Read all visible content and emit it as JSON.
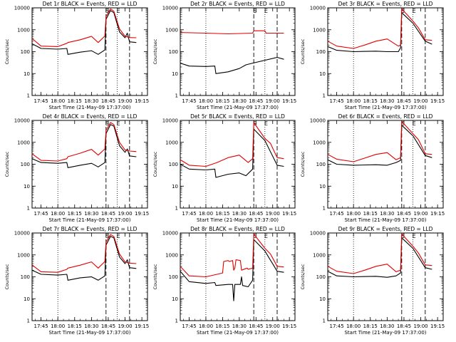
{
  "window": {
    "background": "#ffffff",
    "events_color": "#000000",
    "lld_color": "#e00000"
  },
  "chart_data": [
    {
      "type": "line",
      "title": "Det 1r  BLACK = Events, RED = LLD",
      "xlabel": "Start Time (21-May-09 17:37:00)",
      "ylabel": "Counts/sec",
      "y_scale": "log",
      "ylim": [
        1,
        10000
      ],
      "x_ticks": [
        "17:45",
        "18:00",
        "18:15",
        "18:30",
        "18:45",
        "19:00",
        "19:15"
      ],
      "y_ticks": [
        "1",
        "10",
        "100",
        "1000",
        "10000"
      ],
      "saa_markers": [
        "S",
        "E"
      ],
      "series": [
        {
          "name": "Events",
          "x": [
            "17:37",
            "17:45",
            "18:00",
            "18:08",
            "18:09",
            "18:20",
            "18:30",
            "18:36",
            "18:42",
            "18:43",
            "18:47",
            "18:50",
            "18:55",
            "19:00",
            "19:02",
            "19:04",
            "19:10"
          ],
          "values": [
            230,
            140,
            130,
            140,
            75,
            95,
            110,
            75,
            120,
            3000,
            7500,
            6000,
            800,
            430,
            700,
            280,
            260
          ]
        },
        {
          "name": "LLD",
          "x": [
            "17:37",
            "17:45",
            "18:00",
            "18:08",
            "18:09",
            "18:20",
            "18:30",
            "18:36",
            "18:42",
            "18:43",
            "18:47",
            "18:50",
            "18:55",
            "19:00",
            "19:04",
            "19:10"
          ],
          "values": [
            400,
            180,
            170,
            240,
            260,
            350,
            500,
            260,
            520,
            4000,
            9000,
            7000,
            1100,
            500,
            440,
            430
          ]
        }
      ]
    },
    {
      "type": "line",
      "title": "Det 2r  BLACK = Events, RED = LLD",
      "xlabel": "Start Time (21-May-09 17:37:00)",
      "ylabel": "Counts/sec",
      "y_scale": "log",
      "ylim": [
        1,
        10000
      ],
      "x_ticks": [
        "17:45",
        "18:00",
        "18:15",
        "18:30",
        "18:45",
        "19:00",
        "19:15"
      ],
      "y_ticks": [
        "1",
        "10",
        "100",
        "1000",
        "10000"
      ],
      "saa_markers": [
        "S",
        "E"
      ],
      "series": [
        {
          "name": "Events",
          "x": [
            "17:37",
            "17:45",
            "18:00",
            "18:08",
            "18:09",
            "18:20",
            "18:30",
            "18:36",
            "18:42",
            "19:04",
            "19:10"
          ],
          "values": [
            30,
            22,
            21,
            22,
            10,
            12,
            17,
            25,
            30,
            55,
            45
          ]
        },
        {
          "name": "LLD",
          "x": [
            "17:37",
            "18:00",
            "18:20",
            "18:42",
            "18:43",
            "18:53",
            "18:54",
            "19:10"
          ],
          "values": [
            750,
            700,
            650,
            700,
            900,
            900,
            700,
            700
          ]
        }
      ]
    },
    {
      "type": "line",
      "title": "Det 3r  BLACK = Events, RED = LLD",
      "xlabel": "Start Time (21-May-09 17:37:00)",
      "ylabel": "Counts/sec",
      "y_scale": "log",
      "ylim": [
        1,
        10000
      ],
      "x_ticks": [
        "17:45",
        "18:00",
        "18:15",
        "18:30",
        "18:45",
        "19:00",
        "19:15"
      ],
      "y_ticks": [
        "1",
        "10",
        "100",
        "1000",
        "10000"
      ],
      "saa_markers": [
        "S",
        "E"
      ],
      "series": [
        {
          "name": "Events",
          "x": [
            "17:37",
            "17:45",
            "18:00",
            "18:20",
            "18:30",
            "18:40",
            "18:42",
            "18:43",
            "18:53",
            "19:04",
            "19:10"
          ],
          "values": [
            170,
            115,
            100,
            105,
            100,
            100,
            150,
            6000,
            2000,
            300,
            220
          ]
        },
        {
          "name": "LLD",
          "x": [
            "17:37",
            "17:45",
            "18:00",
            "18:10",
            "18:20",
            "18:30",
            "18:40",
            "18:42",
            "18:43",
            "18:53",
            "18:58",
            "19:04",
            "19:10"
          ],
          "values": [
            300,
            180,
            140,
            200,
            300,
            380,
            180,
            200,
            9000,
            2500,
            1200,
            350,
            330
          ]
        }
      ]
    },
    {
      "type": "line",
      "title": "Det 4r  BLACK = Events, RED = LLD",
      "xlabel": "Start Time (21-May-09 17:37:00)",
      "ylabel": "Counts/sec",
      "y_scale": "log",
      "ylim": [
        1,
        10000
      ],
      "x_ticks": [
        "17:45",
        "18:00",
        "18:15",
        "18:30",
        "18:45",
        "19:00",
        "19:15"
      ],
      "y_ticks": [
        "1",
        "10",
        "100",
        "1000",
        "10000"
      ],
      "saa_markers": [
        "S",
        "E"
      ],
      "series": [
        {
          "name": "Events",
          "x": [
            "17:37",
            "17:45",
            "18:00",
            "18:08",
            "18:09",
            "18:20",
            "18:30",
            "18:36",
            "18:42",
            "18:43",
            "18:47",
            "18:50",
            "18:55",
            "19:00",
            "19:02",
            "19:04",
            "19:10"
          ],
          "values": [
            180,
            120,
            110,
            120,
            70,
            90,
            110,
            75,
            120,
            2500,
            6500,
            5500,
            700,
            350,
            500,
            240,
            220
          ]
        },
        {
          "name": "LLD",
          "x": [
            "17:37",
            "17:45",
            "18:00",
            "18:08",
            "18:09",
            "18:20",
            "18:30",
            "18:36",
            "18:42",
            "18:43",
            "18:47",
            "18:50",
            "18:55",
            "19:00",
            "19:04",
            "19:10"
          ],
          "values": [
            300,
            150,
            140,
            180,
            220,
            320,
            480,
            260,
            500,
            3500,
            8000,
            6500,
            1000,
            450,
            400,
            380
          ]
        }
      ]
    },
    {
      "type": "line",
      "title": "Det 5r  BLACK = Events, RED = LLD",
      "xlabel": "Start Time (21-May-09 17:37:00)",
      "ylabel": "Counts/sec",
      "y_scale": "log",
      "ylim": [
        1,
        10000
      ],
      "x_ticks": [
        "17:45",
        "18:00",
        "18:15",
        "18:30",
        "18:45",
        "19:00",
        "19:15"
      ],
      "y_ticks": [
        "1",
        "10",
        "100",
        "1000",
        "10000"
      ],
      "saa_markers": [
        "S",
        "E"
      ],
      "series": [
        {
          "name": "Events",
          "x": [
            "17:37",
            "17:45",
            "18:00",
            "18:08",
            "18:09",
            "18:20",
            "18:30",
            "18:36",
            "18:42",
            "18:43",
            "18:53",
            "19:04",
            "19:10"
          ],
          "values": [
            100,
            60,
            55,
            60,
            25,
            35,
            40,
            30,
            60,
            4000,
            1200,
            90,
            80
          ]
        },
        {
          "name": "LLD",
          "x": [
            "17:37",
            "17:45",
            "18:00",
            "18:10",
            "18:20",
            "18:30",
            "18:38",
            "18:42",
            "18:43",
            "18:53",
            "18:58",
            "19:04",
            "19:10"
          ],
          "values": [
            160,
            90,
            80,
            120,
            200,
            260,
            120,
            180,
            8000,
            1500,
            900,
            200,
            180
          ]
        }
      ]
    },
    {
      "type": "line",
      "title": "Det 6r  BLACK = Events, RED = LLD",
      "xlabel": "Start Time (21-May-09 17:37:00)",
      "ylabel": "Counts/sec",
      "y_scale": "log",
      "ylim": [
        1,
        10000
      ],
      "x_ticks": [
        "17:45",
        "18:00",
        "18:15",
        "18:30",
        "18:45",
        "19:00",
        "19:15"
      ],
      "y_ticks": [
        "1",
        "10",
        "100",
        "1000",
        "10000"
      ],
      "saa_markers": [
        "S",
        "E"
      ],
      "series": [
        {
          "name": "Events",
          "x": [
            "17:37",
            "17:45",
            "18:00",
            "18:20",
            "18:30",
            "18:38",
            "18:42",
            "18:43",
            "18:53",
            "19:04",
            "19:10"
          ],
          "values": [
            160,
            100,
            90,
            95,
            90,
            120,
            150,
            6000,
            2000,
            250,
            200
          ]
        },
        {
          "name": "LLD",
          "x": [
            "17:37",
            "17:45",
            "18:00",
            "18:10",
            "18:20",
            "18:30",
            "18:38",
            "18:42",
            "18:43",
            "18:53",
            "18:58",
            "19:04",
            "19:10"
          ],
          "values": [
            280,
            170,
            130,
            190,
            280,
            340,
            160,
            200,
            9000,
            2500,
            1300,
            300,
            280
          ]
        }
      ]
    },
    {
      "type": "line",
      "title": "Det 7r  BLACK = Events, RED = LLD",
      "xlabel": "Start Time (21-May-09 17:37:00)",
      "ylabel": "Counts/sec",
      "y_scale": "log",
      "ylim": [
        1,
        10000
      ],
      "x_ticks": [
        "17:45",
        "18:00",
        "18:15",
        "18:30",
        "18:45",
        "19:00",
        "19:15"
      ],
      "y_ticks": [
        "1",
        "10",
        "100",
        "1000",
        "10000"
      ],
      "saa_markers": [
        "S",
        "E"
      ],
      "series": [
        {
          "name": "Events",
          "x": [
            "17:37",
            "17:45",
            "18:00",
            "18:08",
            "18:09",
            "18:20",
            "18:30",
            "18:36",
            "18:42",
            "18:43",
            "18:47",
            "18:50",
            "18:55",
            "19:00",
            "19:02",
            "19:04",
            "19:10"
          ],
          "values": [
            200,
            130,
            120,
            130,
            70,
            90,
            100,
            70,
            110,
            2800,
            7000,
            6000,
            800,
            400,
            600,
            260,
            240
          ]
        },
        {
          "name": "LLD",
          "x": [
            "17:37",
            "17:45",
            "18:00",
            "18:08",
            "18:09",
            "18:20",
            "18:30",
            "18:36",
            "18:42",
            "18:43",
            "18:47",
            "18:50",
            "18:55",
            "19:00",
            "19:04",
            "19:10"
          ],
          "values": [
            350,
            170,
            160,
            220,
            250,
            340,
            480,
            250,
            500,
            3800,
            8500,
            7000,
            1100,
            480,
            420,
            400
          ]
        }
      ]
    },
    {
      "type": "line",
      "title": "Det 8r  BLACK = Events, RED = LLD",
      "xlabel": "Start Time (21-May-09 17:37:00)",
      "ylabel": "Counts/sec",
      "y_scale": "log",
      "ylim": [
        1,
        10000
      ],
      "x_ticks": [
        "17:45",
        "18:00",
        "18:15",
        "18:30",
        "18:45",
        "19:00",
        "19:15"
      ],
      "y_ticks": [
        "1",
        "10",
        "100",
        "1000",
        "10000"
      ],
      "saa_markers": [
        "S",
        "E"
      ],
      "series": [
        {
          "name": "Events",
          "x": [
            "17:37",
            "17:45",
            "18:00",
            "18:08",
            "18:09",
            "18:20",
            "18:24",
            "18:25",
            "18:26",
            "18:31",
            "18:32",
            "18:33",
            "18:38",
            "18:42",
            "18:43",
            "18:53",
            "19:04",
            "19:10"
          ],
          "values": [
            180,
            60,
            50,
            55,
            40,
            45,
            45,
            8,
            45,
            45,
            100,
            40,
            35,
            70,
            5000,
            1500,
            180,
            160
          ]
        },
        {
          "name": "LLD",
          "x": [
            "17:37",
            "17:45",
            "18:00",
            "18:10",
            "18:15",
            "18:16",
            "18:20",
            "18:21",
            "18:24",
            "18:25",
            "18:26",
            "18:27",
            "18:31",
            "18:32",
            "18:37",
            "18:38",
            "18:42",
            "18:43",
            "18:53",
            "18:58",
            "19:04",
            "19:10"
          ],
          "values": [
            300,
            110,
            100,
            130,
            150,
            500,
            550,
            500,
            550,
            200,
            250,
            600,
            550,
            200,
            250,
            220,
            250,
            9000,
            2000,
            1100,
            300,
            280
          ]
        }
      ]
    },
    {
      "type": "line",
      "title": "Det 9r  BLACK = Events, RED = LLD",
      "xlabel": "Start Time (21-May-09 17:37:00)",
      "ylabel": "Counts/sec",
      "y_scale": "log",
      "ylim": [
        1,
        10000
      ],
      "x_ticks": [
        "17:45",
        "18:00",
        "18:15",
        "18:30",
        "18:45",
        "19:00",
        "19:15"
      ],
      "y_ticks": [
        "1",
        "10",
        "100",
        "1000",
        "10000"
      ],
      "saa_markers": [
        "S",
        "E"
      ],
      "series": [
        {
          "name": "Events",
          "x": [
            "17:37",
            "17:45",
            "18:00",
            "18:20",
            "18:30",
            "18:38",
            "18:42",
            "18:43",
            "18:53",
            "19:04",
            "19:10"
          ],
          "values": [
            180,
            110,
            100,
            105,
            95,
            110,
            150,
            6000,
            2000,
            260,
            220
          ]
        },
        {
          "name": "LLD",
          "x": [
            "17:37",
            "17:45",
            "18:00",
            "18:10",
            "18:20",
            "18:30",
            "18:38",
            "18:42",
            "18:43",
            "18:53",
            "18:58",
            "19:04",
            "19:10"
          ],
          "values": [
            300,
            180,
            140,
            200,
            300,
            380,
            170,
            200,
            9000,
            2500,
            1200,
            350,
            330
          ]
        }
      ]
    }
  ]
}
